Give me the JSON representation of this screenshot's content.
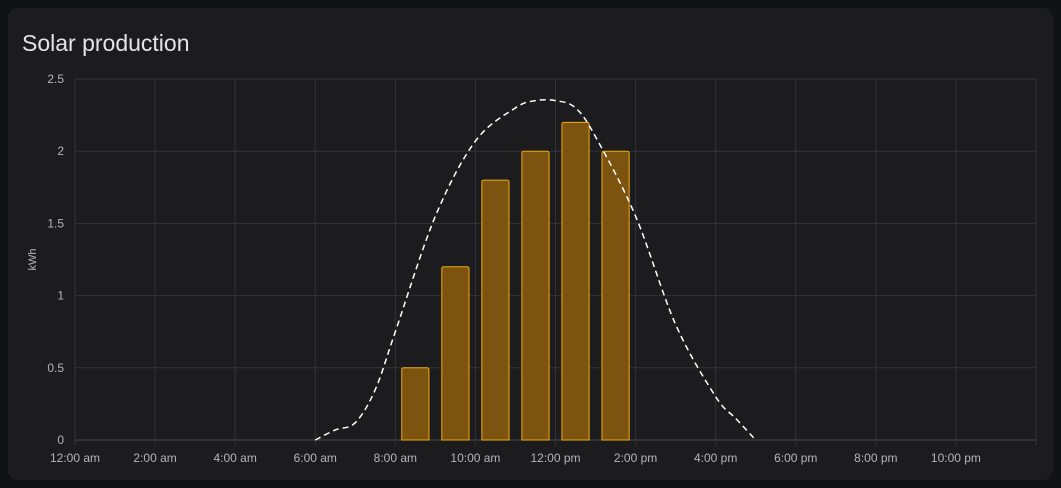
{
  "card": {
    "title": "Solar production"
  },
  "chart_data": {
    "type": "bar",
    "title": "Solar production",
    "ylabel": "kWh",
    "xlabel": "",
    "ylim": [
      0,
      2.5
    ],
    "yticks": [
      "0",
      "0.5",
      "1",
      "1.5",
      "2",
      "2.5"
    ],
    "x_tick_labels": [
      "12:00 am",
      "2:00 am",
      "4:00 am",
      "6:00 am",
      "8:00 am",
      "10:00 am",
      "12:00 pm",
      "2:00 pm",
      "4:00 pm",
      "6:00 pm",
      "8:00 pm",
      "10:00 pm"
    ],
    "bars": [
      {
        "hour": 8,
        "value": 0.5
      },
      {
        "hour": 9,
        "value": 1.2
      },
      {
        "hour": 10,
        "value": 1.8
      },
      {
        "hour": 11,
        "value": 2.0
      },
      {
        "hour": 12,
        "value": 2.2
      },
      {
        "hour": 13,
        "value": 2.0
      }
    ],
    "forecast": {
      "style": "dashed",
      "x_hours": [
        6,
        6.5,
        7,
        7.5,
        8,
        9,
        10,
        11,
        11.5,
        12,
        12.5,
        13,
        14,
        15,
        16,
        16.5,
        17
      ],
      "values": [
        0,
        0.07,
        0.12,
        0.35,
        0.75,
        1.55,
        2.07,
        2.3,
        2.35,
        2.35,
        2.3,
        2.1,
        1.55,
        0.8,
        0.3,
        0.15,
        0
      ]
    },
    "grid": true,
    "colors": {
      "bar_fill": "#7c5410",
      "bar_stroke": "#f0a814",
      "forecast": "#ffffff",
      "grid": "#333336"
    }
  }
}
